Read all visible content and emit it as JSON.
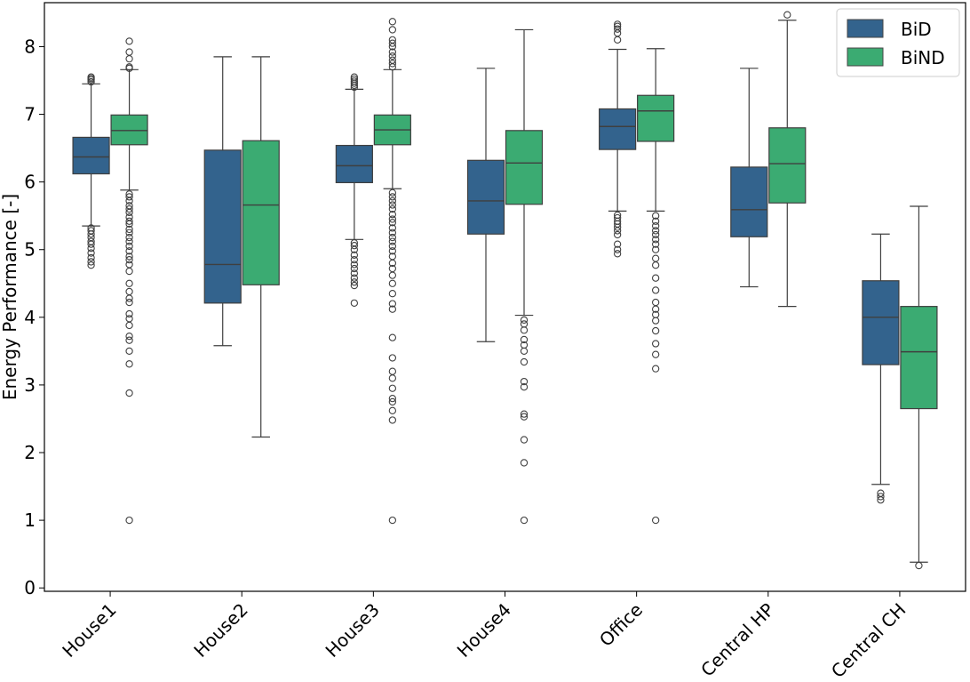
{
  "chart_data": {
    "type": "boxplot",
    "ylabel": "Energy Performance [-]",
    "xlabel": "",
    "ylim": [
      -0.05,
      8.65
    ],
    "yticks": [
      0,
      1,
      2,
      3,
      4,
      5,
      6,
      7,
      8
    ],
    "categories": [
      "House1",
      "House2",
      "House3",
      "House4",
      "Office",
      "Central HP",
      "Central CH"
    ],
    "legend": {
      "position": "top-right"
    },
    "series": [
      {
        "name": "BiD",
        "color": "#33638d",
        "boxes": [
          {
            "whislo": 5.35,
            "q1": 6.12,
            "med": 6.37,
            "q3": 6.66,
            "whishi": 7.45,
            "fliers": [
              4.77,
              4.82,
              4.88,
              4.95,
              5.02,
              5.08,
              5.12,
              5.18,
              5.23,
              5.28,
              5.32,
              7.48,
              7.51,
              7.53,
              7.55
            ]
          },
          {
            "whislo": 3.58,
            "q1": 4.21,
            "med": 4.78,
            "q3": 6.47,
            "whishi": 7.85,
            "fliers": []
          },
          {
            "whislo": 5.15,
            "q1": 5.99,
            "med": 6.24,
            "q3": 6.54,
            "whishi": 7.37,
            "fliers": [
              4.21,
              4.47,
              4.52,
              4.58,
              4.65,
              4.72,
              4.78,
              4.85,
              4.92,
              5.0,
              5.06,
              5.1,
              7.4,
              7.43,
              7.46,
              7.49,
              7.52,
              7.55
            ]
          },
          {
            "whislo": 3.64,
            "q1": 5.23,
            "med": 5.72,
            "q3": 6.32,
            "whishi": 7.68,
            "fliers": []
          },
          {
            "whislo": 5.57,
            "q1": 6.48,
            "med": 6.82,
            "q3": 7.08,
            "whishi": 7.96,
            "fliers": [
              4.94,
              5.0,
              5.08,
              5.22,
              5.28,
              5.33,
              5.38,
              5.42,
              5.47,
              5.51,
              8.1,
              8.2,
              8.26,
              8.3,
              8.33
            ]
          },
          {
            "whislo": 4.45,
            "q1": 5.19,
            "med": 5.59,
            "q3": 6.22,
            "whishi": 7.68,
            "fliers": []
          },
          {
            "whislo": 1.53,
            "q1": 3.3,
            "med": 4.0,
            "q3": 4.54,
            "whishi": 5.23,
            "fliers": [
              1.3,
              1.35,
              1.4
            ]
          }
        ]
      },
      {
        "name": "BiND",
        "color": "#3bab72",
        "boxes": [
          {
            "whislo": 5.88,
            "q1": 6.55,
            "med": 6.76,
            "q3": 6.99,
            "whishi": 7.66,
            "fliers": [
              1.0,
              2.88,
              3.31,
              3.5,
              3.66,
              3.72,
              3.88,
              3.98,
              4.05,
              4.22,
              4.28,
              4.38,
              4.5,
              4.68,
              4.78,
              4.85,
              4.9,
              4.98,
              5.05,
              5.12,
              5.18,
              5.25,
              5.3,
              5.38,
              5.42,
              5.48,
              5.55,
              5.6,
              5.65,
              5.72,
              5.78,
              5.82,
              7.68,
              7.7,
              7.82,
              7.92,
              8.08
            ]
          },
          {
            "whislo": 2.23,
            "q1": 4.48,
            "med": 5.66,
            "q3": 6.61,
            "whishi": 7.85,
            "fliers": []
          },
          {
            "whislo": 5.9,
            "q1": 6.55,
            "med": 6.77,
            "q3": 6.99,
            "whishi": 7.66,
            "fliers": [
              1.0,
              2.48,
              2.62,
              2.75,
              2.8,
              2.95,
              3.1,
              3.2,
              3.4,
              3.7,
              4.12,
              4.2,
              4.35,
              4.5,
              4.62,
              4.72,
              4.8,
              4.9,
              4.98,
              5.05,
              5.12,
              5.18,
              5.25,
              5.32,
              5.4,
              5.45,
              5.52,
              5.6,
              5.66,
              5.72,
              5.78,
              5.84,
              7.7,
              7.75,
              7.8,
              7.86,
              7.92,
              8.0,
              8.05,
              8.1,
              8.25,
              8.37
            ]
          },
          {
            "whislo": 4.03,
            "q1": 5.67,
            "med": 6.28,
            "q3": 6.76,
            "whishi": 8.25,
            "fliers": [
              1.0,
              1.85,
              2.19,
              2.53,
              2.57,
              2.97,
              3.05,
              3.34,
              3.5,
              3.59,
              3.67,
              3.81,
              3.9,
              3.96
            ]
          },
          {
            "whislo": 5.57,
            "q1": 6.6,
            "med": 7.05,
            "q3": 7.28,
            "whishi": 7.97,
            "fliers": [
              1.0,
              3.24,
              3.45,
              3.61,
              3.8,
              3.95,
              4.04,
              4.12,
              4.22,
              4.4,
              4.58,
              4.77,
              4.87,
              5.0,
              5.08,
              5.15,
              5.22,
              5.28,
              5.35,
              5.42,
              5.5
            ]
          },
          {
            "whislo": 4.16,
            "q1": 5.69,
            "med": 6.27,
            "q3": 6.8,
            "whishi": 8.39,
            "fliers": [
              8.47
            ]
          },
          {
            "whislo": 0.38,
            "q1": 2.65,
            "med": 3.49,
            "q3": 4.16,
            "whishi": 5.64,
            "fliers": [
              0.33
            ]
          }
        ]
      }
    ]
  }
}
